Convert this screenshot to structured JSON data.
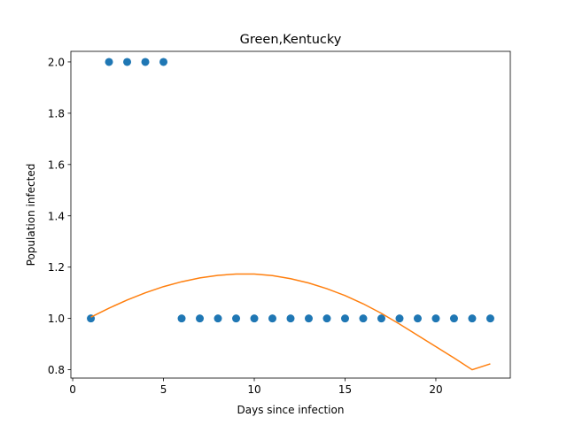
{
  "chart_data": {
    "type": "scatter",
    "title": "Green,Kentucky",
    "xlabel": "Days since infection",
    "ylabel": "Population infected",
    "xlim": [
      -0.1,
      24.1
    ],
    "ylim": [
      0.7675,
      2.0412
    ],
    "xticks": [
      0,
      5,
      10,
      15,
      20
    ],
    "xtick_labels": [
      "0",
      "5",
      "10",
      "15",
      "20"
    ],
    "yticks": [
      0.8,
      1.0,
      1.2,
      1.4,
      1.6,
      1.8,
      2.0
    ],
    "ytick_labels": [
      "0.8",
      "1.0",
      "1.2",
      "1.4",
      "1.6",
      "1.8",
      "2.0"
    ],
    "grid": false,
    "series": [
      {
        "kind": "scatter",
        "color": "#1f77b4",
        "x": [
          1,
          2,
          3,
          4,
          5,
          6,
          7,
          8,
          9,
          10,
          11,
          12,
          13,
          14,
          15,
          16,
          17,
          18,
          19,
          20,
          21,
          22,
          23
        ],
        "y": [
          1,
          2,
          2,
          2,
          2,
          1,
          1,
          1,
          1,
          1,
          1,
          1,
          1,
          1,
          1,
          1,
          1,
          1,
          1,
          1,
          1,
          1,
          1
        ]
      },
      {
        "kind": "line",
        "color": "#ff7f0e",
        "x": [
          1,
          2,
          3,
          4,
          5,
          6,
          7,
          8,
          9,
          10,
          11,
          12,
          13,
          14,
          15,
          16,
          17,
          18,
          19,
          20,
          21,
          22,
          23
        ],
        "y": [
          1.005,
          1.04,
          1.072,
          1.1,
          1.124,
          1.143,
          1.158,
          1.168,
          1.173,
          1.173,
          1.167,
          1.155,
          1.138,
          1.116,
          1.089,
          1.057,
          1.02,
          0.978,
          0.934,
          0.89,
          0.846,
          0.8,
          0.823
        ]
      }
    ]
  }
}
